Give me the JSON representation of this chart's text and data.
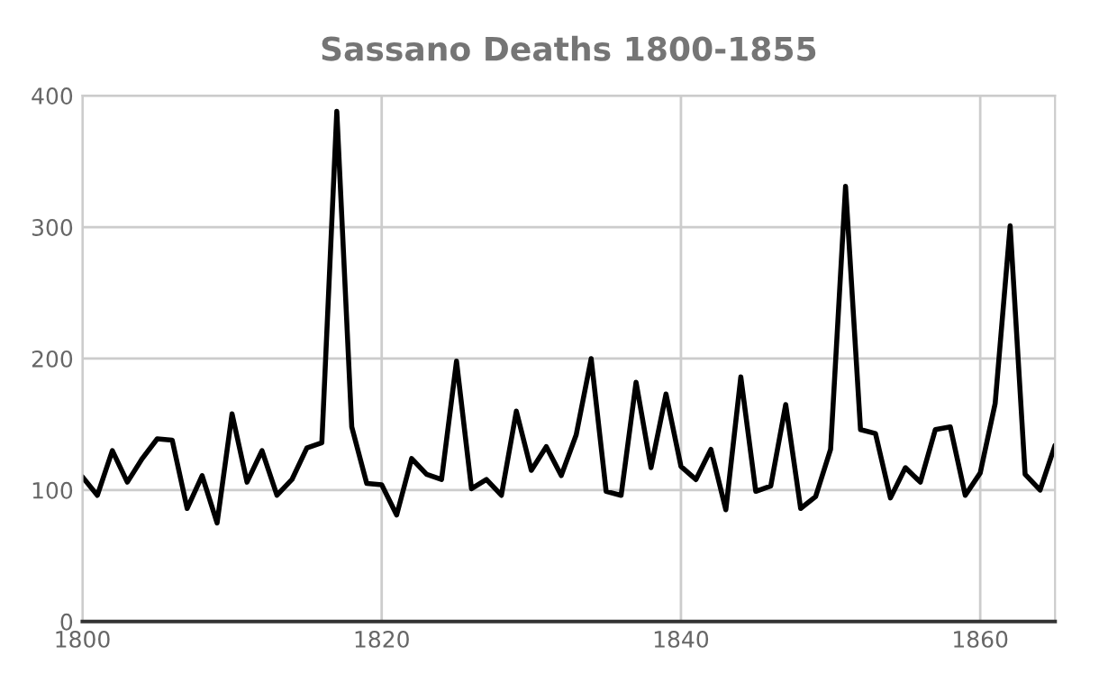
{
  "chart_data": {
    "type": "line",
    "title": "Sassano Deaths 1800-1855",
    "x": [
      1800,
      1801,
      1802,
      1803,
      1804,
      1805,
      1806,
      1807,
      1808,
      1809,
      1810,
      1811,
      1812,
      1813,
      1814,
      1815,
      1816,
      1817,
      1818,
      1819,
      1820,
      1821,
      1822,
      1823,
      1824,
      1825,
      1826,
      1827,
      1828,
      1829,
      1830,
      1831,
      1832,
      1833,
      1834,
      1835,
      1836,
      1837,
      1838,
      1839,
      1840,
      1841,
      1842,
      1843,
      1844,
      1845,
      1846,
      1847,
      1848,
      1849,
      1850,
      1851,
      1852,
      1853,
      1854,
      1855,
      1856,
      1857,
      1858,
      1859,
      1860,
      1861,
      1862,
      1863,
      1864,
      1865
    ],
    "series": [
      {
        "color": "#000000",
        "values": [
          110,
          96,
          130,
          106,
          124,
          139,
          138,
          86,
          111,
          75,
          158,
          106,
          130,
          96,
          108,
          132,
          136,
          388,
          148,
          105,
          104,
          81,
          124,
          112,
          108,
          198,
          101,
          108,
          96,
          160,
          115,
          133,
          111,
          142,
          200,
          99,
          96,
          182,
          117,
          173,
          118,
          108,
          131,
          85,
          186,
          99,
          103,
          165,
          86,
          95,
          131,
          331,
          146,
          143,
          94,
          117,
          106,
          146,
          148,
          96,
          113,
          166,
          301,
          112,
          100,
          134
        ]
      }
    ],
    "xlim": [
      1800,
      1865
    ],
    "xticks": [
      1800,
      1820,
      1840,
      1860
    ],
    "ylim": [
      0,
      400
    ],
    "yticks": [
      0,
      100,
      200,
      300,
      400
    ],
    "grid": true,
    "legend": false
  }
}
